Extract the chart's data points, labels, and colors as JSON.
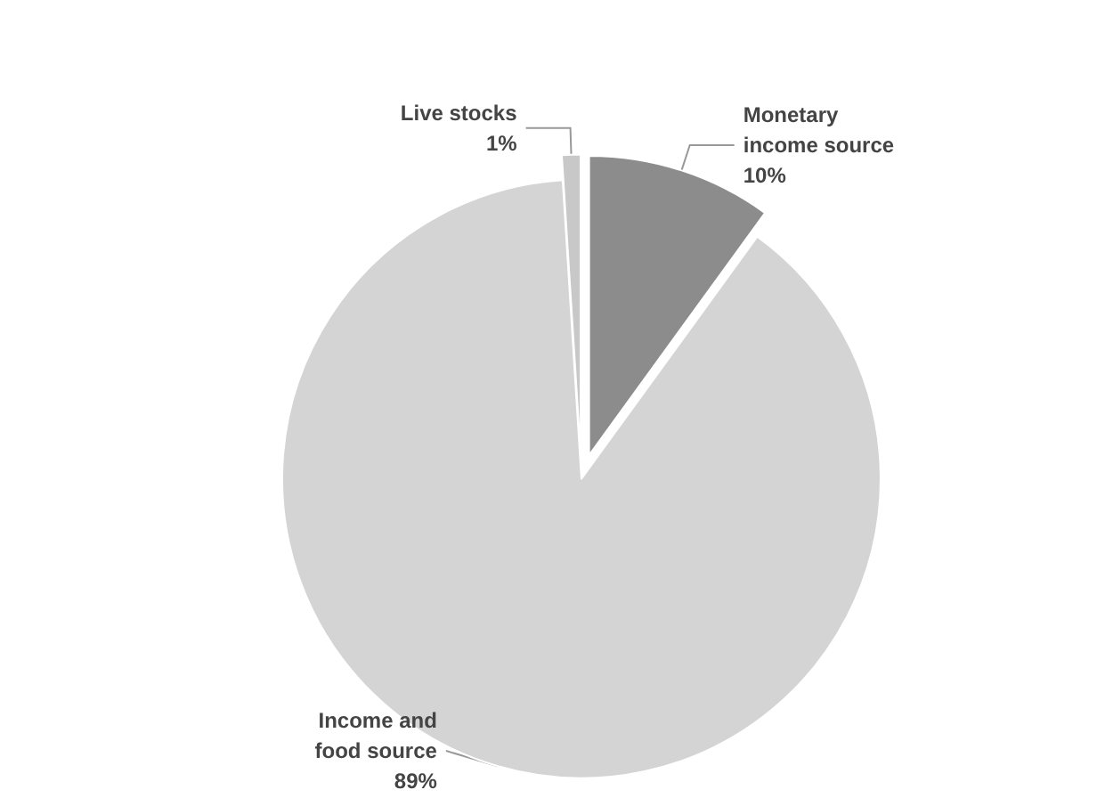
{
  "chart_data": {
    "type": "pie",
    "categories": [
      "Monetary\nincome source",
      "Income and\nfood source",
      "Live stocks"
    ],
    "values": [
      10,
      89,
      1
    ],
    "value_labels": [
      "10%",
      "89%",
      "1%"
    ],
    "colors": [
      "#8c8c8c",
      "#d4d4d4",
      "#c8c8c8"
    ]
  }
}
